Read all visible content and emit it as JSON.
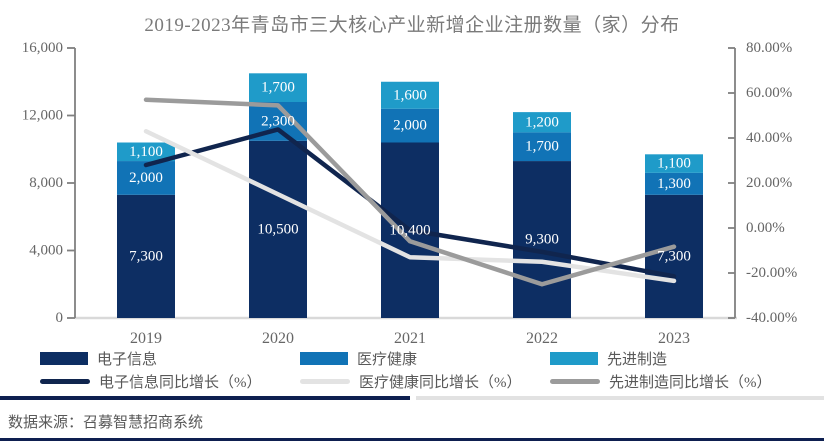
{
  "header": {
    "title": "2019-2023年青岛市三大核心产业新增企业注册数量（家）分布"
  },
  "chart_data": {
    "type": "combo-stacked-bar-line",
    "categories": [
      "2019",
      "2020",
      "2021",
      "2022",
      "2023"
    ],
    "bar_series": [
      {
        "name": "电子信息",
        "color": "#0D2E63",
        "values": [
          7300,
          10500,
          10400,
          9300,
          7300
        ]
      },
      {
        "name": "医疗健康",
        "color": "#1173B6",
        "values": [
          2000,
          2300,
          2000,
          1700,
          1300
        ]
      },
      {
        "name": "先进制造",
        "color": "#1F9BC9",
        "values": [
          1100,
          1700,
          1600,
          1200,
          1100
        ]
      }
    ],
    "line_series": [
      {
        "name": "电子信息同比增长（%）",
        "color": "#10254E",
        "values": [
          28,
          43.8,
          -1.0,
          -10.6,
          -21.5
        ]
      },
      {
        "name": "医疗健康同比增长（%）",
        "color": "#E3E3E3",
        "values": [
          43,
          15,
          -13,
          -15,
          -23.5
        ]
      },
      {
        "name": "先进制造同比增长（%）",
        "color": "#9B9B9B",
        "values": [
          57,
          54.5,
          -5.9,
          -25,
          -8.3
        ]
      }
    ],
    "left_axis": {
      "min": 0,
      "max": 16000,
      "tick_values": [
        16000,
        12000,
        8000,
        4000,
        0
      ],
      "tick_labels": [
        "16,000",
        "12,000",
        "8,000",
        "4,000",
        "0"
      ]
    },
    "right_axis": {
      "min": -40,
      "max": 80,
      "tick_values": [
        80,
        60,
        40,
        20,
        0,
        -20,
        -40
      ],
      "tick_labels": [
        "80.00%",
        "60.00%",
        "40.00%",
        "20.00%",
        "0.00%",
        "-20.00%",
        "-40.00%"
      ]
    },
    "data_labels": "values shown on bar segments with thousands separators",
    "legend_position": "bottom",
    "grid": "off"
  },
  "footer": {
    "source": "数据来源：召募智慧招商系统"
  },
  "colors": {
    "axis_line": "#808080",
    "axis_text": "#666666",
    "baseline": "#D9D9D9",
    "title_text": "#7A7A7A",
    "bar_label_text": "#FFFFFF",
    "legend_text": "#595959",
    "divider_navy": "#0E1F50",
    "divider_gray": "#E2E2E2",
    "bottom_bar": "#0E1F50"
  }
}
